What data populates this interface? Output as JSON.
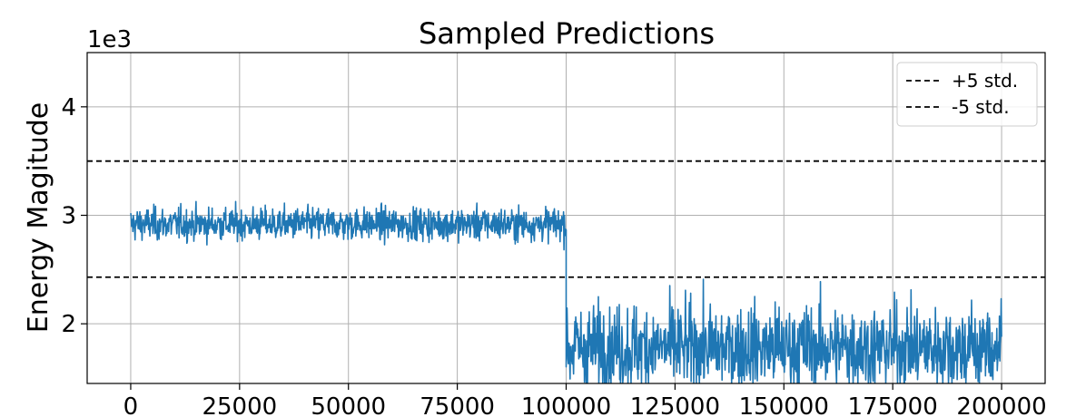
{
  "chart_data": {
    "type": "line",
    "title": "Sampled Predictions",
    "xlabel": "",
    "ylabel": "Energy Magitude",
    "y_offset_label": "1e3",
    "xlim": [
      -10000,
      210000
    ],
    "ylim": [
      1.45,
      4.5
    ],
    "x_ticks": [
      0,
      25000,
      50000,
      75000,
      100000,
      125000,
      150000,
      175000,
      200000
    ],
    "x_tick_labels": [
      "0",
      "25000",
      "50000",
      "75000",
      "100000",
      "125000",
      "150000",
      "175000",
      "200000"
    ],
    "y_ticks": [
      2,
      3,
      4
    ],
    "y_tick_labels": [
      "2",
      "3",
      "4"
    ],
    "grid": true,
    "legend_position": "top-right",
    "series": [
      {
        "kind": "signal",
        "color": "#1f77b4",
        "segments": [
          {
            "x_start": 0,
            "x_end": 100000,
            "mean": 2.92,
            "std": 0.075,
            "min": 2.65,
            "max": 3.15
          },
          {
            "x_start": 100000,
            "x_end": 200000,
            "mean": 1.78,
            "std": 0.2,
            "min": 1.45,
            "max": 2.52
          }
        ]
      },
      {
        "name": "+5 std.",
        "kind": "hline",
        "y": 3.5,
        "color": "#000000",
        "style": "dashed"
      },
      {
        "name": "-5 std.",
        "kind": "hline",
        "y": 2.43,
        "color": "#000000",
        "style": "dashed"
      }
    ]
  }
}
